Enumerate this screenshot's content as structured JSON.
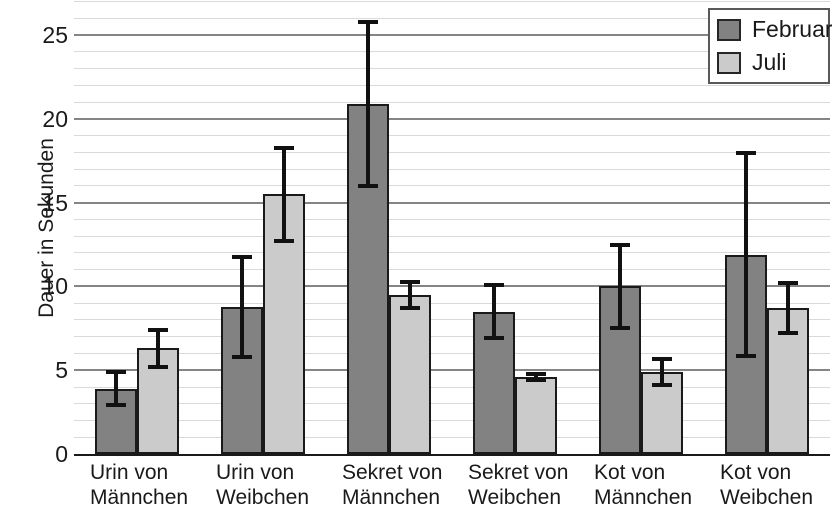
{
  "chart_data": {
    "type": "bar",
    "title": "",
    "xlabel": "",
    "ylabel": "Dauer in Sekunden",
    "ylim": [
      0,
      27.1
    ],
    "yticks": [
      0,
      5,
      10,
      15,
      20,
      25
    ],
    "grid": {
      "minor_step": 1,
      "major_step": 5
    },
    "legend_position": "top-right",
    "error_bars": true,
    "categories": [
      [
        "Urin von",
        "Männchen"
      ],
      [
        "Urin von",
        "Weibchen"
      ],
      [
        "Sekret von",
        "Männchen"
      ],
      [
        "Sekret von",
        "Weibchen"
      ],
      [
        "Kot von",
        "Männchen"
      ],
      [
        "Kot von",
        "Weibchen"
      ]
    ],
    "series": [
      {
        "name": "Februar",
        "color": "#828282",
        "values": [
          3.9,
          8.8,
          20.9,
          8.5,
          10.0,
          11.9
        ],
        "errors": [
          1.1,
          3.1,
          5.0,
          1.7,
          2.6,
          6.2
        ]
      },
      {
        "name": "Juli",
        "color": "#cbcbcb",
        "values": [
          6.3,
          15.5,
          9.5,
          4.6,
          4.9,
          8.7
        ],
        "errors": [
          1.2,
          2.9,
          0.9,
          0.3,
          0.9,
          1.6
        ]
      }
    ]
  },
  "colors": {
    "bar_border": "#1a1a1a",
    "error_bar": "#111111",
    "minor_gridline": "#d9d9d9",
    "major_gridline": "#858585",
    "axis_line": "#1a1a1a",
    "text": "#1a1a1a",
    "legend_border": "#595959",
    "background": "#ffffff"
  }
}
